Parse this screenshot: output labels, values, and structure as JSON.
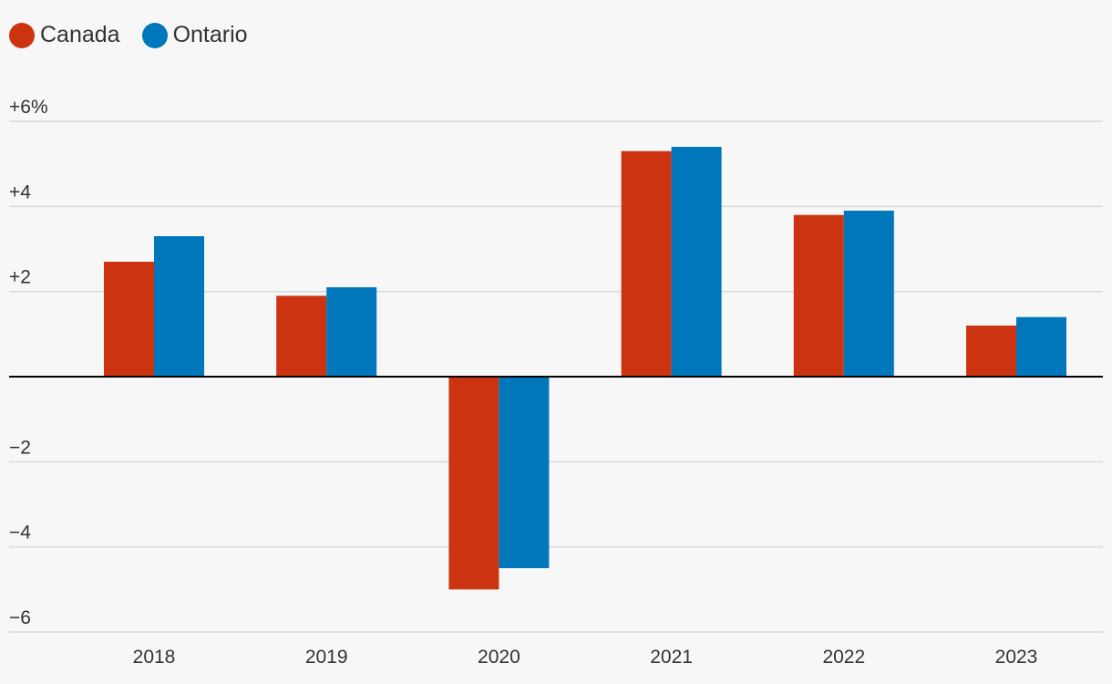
{
  "chart_data": {
    "type": "bar",
    "categories": [
      "2018",
      "2019",
      "2020",
      "2021",
      "2022",
      "2023"
    ],
    "series": [
      {
        "name": "Canada",
        "color": "#cc3311",
        "values": [
          2.7,
          1.9,
          -5.0,
          5.3,
          3.8,
          1.2
        ]
      },
      {
        "name": "Ontario",
        "color": "#0077bb",
        "values": [
          3.3,
          2.1,
          -4.5,
          5.4,
          3.9,
          1.4
        ]
      }
    ],
    "ylim": [
      -6,
      6
    ],
    "yticks": [
      {
        "value": 6,
        "label": "+6%"
      },
      {
        "value": 4,
        "label": "+4"
      },
      {
        "value": 2,
        "label": "+2"
      },
      {
        "value": -2,
        "label": "−2"
      },
      {
        "value": -4,
        "label": "−4"
      },
      {
        "value": -6,
        "label": "−6"
      }
    ],
    "grid": true,
    "legend_position": "top-left",
    "title": "",
    "xlabel": "",
    "ylabel": ""
  }
}
